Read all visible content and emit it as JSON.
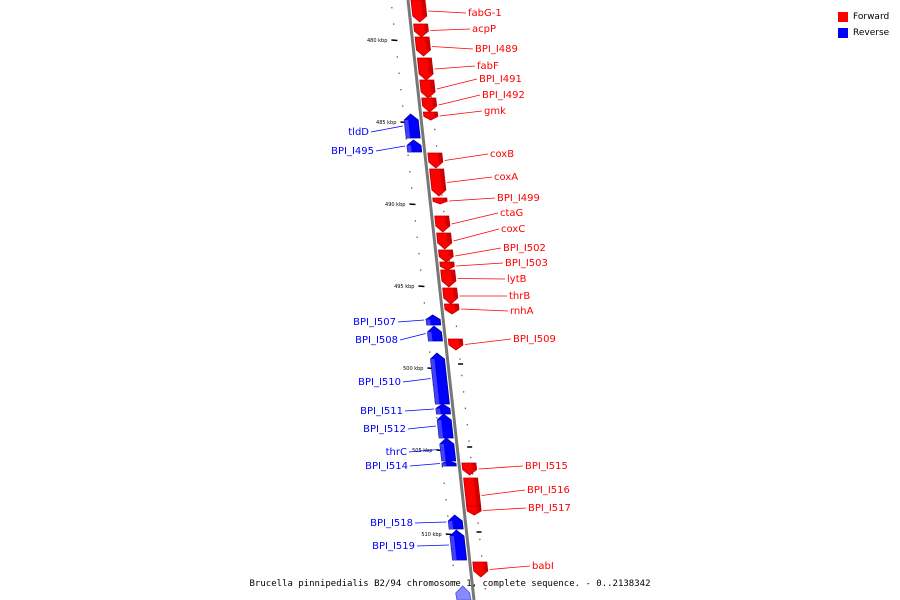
{
  "caption": "Brucella pinnipedialis B2/94 chromosome 1, complete sequence. - 0..2138342",
  "legend": {
    "forward": {
      "label": "Forward",
      "color": "#ff0000"
    },
    "reverse": {
      "label": "Reverse",
      "color": "#0000ff"
    }
  },
  "colors": {
    "forward": "#ff0000",
    "forward_dark": "#b80000",
    "reverse": "#0000ff",
    "reverse_dark": "#0000a8",
    "backbone": "#777777"
  },
  "ticks": [
    {
      "label": "480 kbp",
      "kbp": 480
    },
    {
      "label": "485 kbp",
      "kbp": 485
    },
    {
      "label": "490 kbp",
      "kbp": 490
    },
    {
      "label": "495 kbp",
      "kbp": 495
    },
    {
      "label": "500 kbp",
      "kbp": 500
    },
    {
      "label": "505 kbp",
      "kbp": 505
    },
    {
      "label": "510 kbp",
      "kbp": 510
    }
  ],
  "genes": [
    {
      "name": "fabG-1",
      "strand": "forward"
    },
    {
      "name": "acpP",
      "strand": "forward"
    },
    {
      "name": "BPI_I489",
      "strand": "forward"
    },
    {
      "name": "fabF",
      "strand": "forward"
    },
    {
      "name": "BPI_I491",
      "strand": "forward"
    },
    {
      "name": "BPI_I492",
      "strand": "forward"
    },
    {
      "name": "gmk",
      "strand": "forward"
    },
    {
      "name": "tldD",
      "strand": "reverse"
    },
    {
      "name": "BPI_I495",
      "strand": "reverse"
    },
    {
      "name": "coxB",
      "strand": "forward"
    },
    {
      "name": "coxA",
      "strand": "forward"
    },
    {
      "name": "BPI_I499",
      "strand": "forward"
    },
    {
      "name": "ctaG",
      "strand": "forward"
    },
    {
      "name": "coxC",
      "strand": "forward"
    },
    {
      "name": "BPI_I502",
      "strand": "forward"
    },
    {
      "name": "BPI_I503",
      "strand": "forward"
    },
    {
      "name": "lytB",
      "strand": "forward"
    },
    {
      "name": "thrB",
      "strand": "forward"
    },
    {
      "name": "rnhA",
      "strand": "forward"
    },
    {
      "name": "BPI_I507",
      "strand": "reverse"
    },
    {
      "name": "BPI_I508",
      "strand": "reverse"
    },
    {
      "name": "BPI_I509",
      "strand": "forward"
    },
    {
      "name": "BPI_I510",
      "strand": "reverse"
    },
    {
      "name": "BPI_I511",
      "strand": "reverse"
    },
    {
      "name": "BPI_I512",
      "strand": "reverse"
    },
    {
      "name": "thrC",
      "strand": "reverse"
    },
    {
      "name": "BPI_I514",
      "strand": "reverse"
    },
    {
      "name": "BPI_I515",
      "strand": "forward"
    },
    {
      "name": "BPI_I516",
      "strand": "forward"
    },
    {
      "name": "BPI_I517",
      "strand": "forward"
    },
    {
      "name": "BPI_I518",
      "strand": "reverse"
    },
    {
      "name": "BPI_I519",
      "strand": "reverse"
    },
    {
      "name": "babI",
      "strand": "forward"
    }
  ]
}
